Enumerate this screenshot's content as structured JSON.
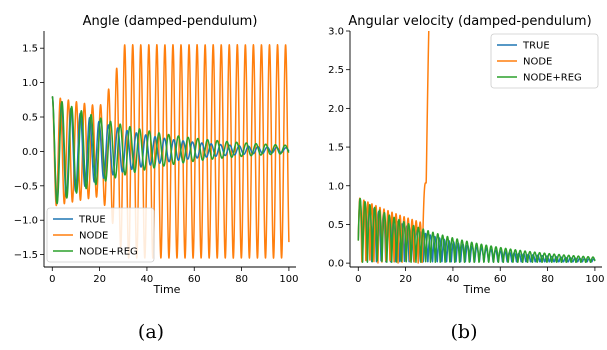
{
  "colors": {
    "true": "#1f77b4",
    "node": "#ff7f0e",
    "reg": "#2ca02c"
  },
  "captions": [
    "(a)",
    "(b)"
  ],
  "chart_data": [
    {
      "type": "line",
      "title": "Angle (damped-pendulum)",
      "xlabel": "Time",
      "ylabel": "",
      "xlim": [
        -3.5,
        103
      ],
      "ylim": [
        -1.68,
        1.75
      ],
      "xticks": [
        0,
        20,
        40,
        60,
        80,
        100
      ],
      "xtick_labels": [
        "0",
        "20",
        "40",
        "60",
        "80",
        "100"
      ],
      "yticks": [
        -1.5,
        -1.0,
        -0.5,
        0.0,
        0.5,
        1.0,
        1.5
      ],
      "ytick_labels": [
        "−1.5",
        "−1.0",
        "−0.5",
        "0.0",
        "0.5",
        "1.0",
        "1.5"
      ],
      "legend_position": "lower-left",
      "series": [
        {
          "name": "TRUE",
          "color_key": "true",
          "kind": "angle-true",
          "y0": 0.8,
          "damping": 0.032,
          "period": 3.95,
          "end_value": 0.02
        },
        {
          "name": "NODE",
          "color_key": "node",
          "kind": "angle-node",
          "y0": 0.8,
          "period": 3.4,
          "growth_start": 20,
          "saturate_at": 38,
          "max_amplitude": 1.55
        },
        {
          "name": "NODE+REG",
          "color_key": "reg",
          "kind": "angle-reg",
          "y0": 0.8,
          "damping": 0.026,
          "period": 4.1,
          "end_value": 0.03
        }
      ]
    },
    {
      "type": "line",
      "title": "Angular velocity (damped-pendulum)",
      "xlabel": "Time",
      "ylabel": "",
      "xlim": [
        -3.5,
        103
      ],
      "ylim": [
        -0.05,
        3.0
      ],
      "xticks": [
        0,
        20,
        40,
        60,
        80,
        100
      ],
      "xtick_labels": [
        "0",
        "20",
        "40",
        "60",
        "80",
        "100"
      ],
      "yticks": [
        0.0,
        0.5,
        1.0,
        1.5,
        2.0,
        2.5,
        3.0
      ],
      "ytick_labels": [
        "0.0",
        "0.5",
        "1.0",
        "1.5",
        "2.0",
        "2.5",
        "3.0"
      ],
      "legend_position": "top-right",
      "series": [
        {
          "name": "TRUE",
          "color_key": "true",
          "kind": "vel-true",
          "y0": 0.3,
          "peak": 0.85,
          "damping": 0.028,
          "period": 3.95,
          "end_value": 0.06
        },
        {
          "name": "NODE",
          "color_key": "node",
          "kind": "vel-node",
          "y0": 0.3,
          "peak": 0.85,
          "period": 3.4,
          "blowup_start": 27,
          "exceeds_top_at": 33
        },
        {
          "name": "NODE+REG",
          "color_key": "reg",
          "kind": "vel-reg",
          "y0": 0.3,
          "peak": 0.85,
          "damping": 0.024,
          "period": 4.1,
          "end_value": 0.04
        }
      ]
    }
  ]
}
